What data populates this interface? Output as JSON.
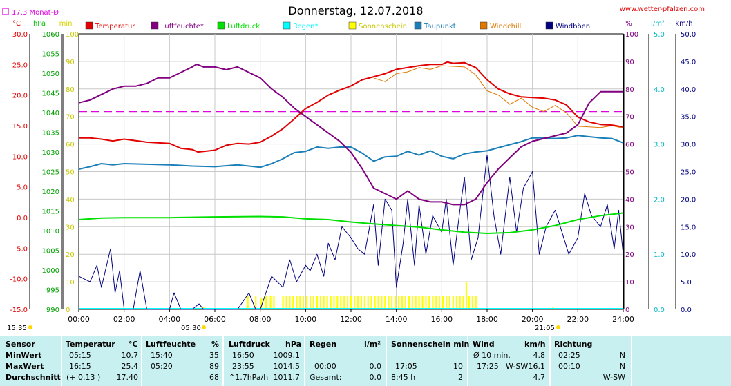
{
  "header": {
    "title": "Donnerstag, 12.07.2018",
    "website": "www.wetter-pfalzen.com",
    "month_avg": "17.3 Monat-Ø",
    "month_avg_value": 17.3,
    "start_time": "15:35",
    "sunrise": "05:30",
    "sunset": "21:05"
  },
  "axis_units": {
    "temp": "°C",
    "hpa": "hPa",
    "min": "min",
    "pct": "%",
    "rain": "l/m²",
    "wind": "km/h"
  },
  "legend": [
    {
      "label": "Temperatur",
      "color": "#e00000"
    },
    {
      "label": "Luftfeuchte*",
      "color": "#800080"
    },
    {
      "label": "Luftdruck",
      "color": "#00e000"
    },
    {
      "label": "Regen*",
      "color": "#00ffff"
    },
    {
      "label": "Sonnenschein",
      "color": "#ffff00"
    },
    {
      "label": "Taupunkt",
      "color": "#1a7fb8"
    },
    {
      "label": "Windchill",
      "color": "#e07800"
    },
    {
      "label": "Windböen",
      "color": "#000080"
    }
  ],
  "chart_data": {
    "type": "line",
    "title": "Donnerstag, 12.07.2018",
    "x_ticks": [
      "00:00",
      "02:00",
      "04:00",
      "06:00",
      "08:00",
      "10:00",
      "12:00",
      "14:00",
      "16:00",
      "18:00",
      "20:00",
      "22:00",
      "24:00"
    ],
    "x_range_hours": [
      0,
      24
    ],
    "axes": {
      "temp_c": {
        "range": [
          -15,
          30
        ],
        "ticks": [
          "30.0",
          "25.0",
          "20.0",
          "15.0",
          "10.0",
          "5.0",
          "0.0",
          "-5.0",
          "-10.0",
          "-15.0"
        ]
      },
      "pressure_hpa": {
        "range": [
          990,
          1060
        ],
        "ticks": [
          "1060",
          "1055",
          "1050",
          "1045",
          "1040",
          "1035",
          "1030",
          "1025",
          "1020",
          "1015",
          "1010",
          "1005",
          "1000",
          "995",
          "990"
        ]
      },
      "sunshine_min": {
        "range": [
          0,
          100
        ],
        "ticks": [
          "100",
          "90",
          "80",
          "70",
          "60",
          "50",
          "40",
          "30",
          "20",
          "10",
          "0"
        ]
      },
      "humidity_pct": {
        "range": [
          0,
          100
        ],
        "ticks": [
          "100",
          "90",
          "80",
          "70",
          "60",
          "50",
          "40",
          "30",
          "20",
          "10",
          "0"
        ]
      },
      "rain_lm2": {
        "range": [
          0,
          5
        ],
        "ticks": [
          "5.0",
          "4.0",
          "3.0",
          "2.0",
          "1.0",
          "0.0"
        ]
      },
      "wind_kmh": {
        "range": [
          0,
          50
        ],
        "ticks": [
          "50.0",
          "45.0",
          "40.0",
          "35.0",
          "30.0",
          "25.0",
          "20.0",
          "15.0",
          "10.0",
          "5.0",
          "0.0"
        ]
      }
    },
    "series": [
      {
        "name": "Temperatur",
        "axis": "temp_c",
        "color": "#e00000",
        "x": [
          0,
          0.5,
          1,
          1.5,
          2,
          3,
          4,
          4.5,
          5,
          5.25,
          5.5,
          6,
          6.5,
          7,
          7.5,
          8,
          8.5,
          9,
          9.5,
          10,
          10.5,
          11,
          11.5,
          12,
          12.5,
          13,
          13.5,
          14,
          14.5,
          15,
          15.5,
          16,
          16.25,
          16.5,
          17,
          17.5,
          18,
          18.5,
          19,
          19.5,
          20,
          20.5,
          21,
          21.5,
          22,
          22.5,
          23,
          23.5,
          24
        ],
        "y": [
          13,
          13,
          12.8,
          12.5,
          12.8,
          12.3,
          12.1,
          11.3,
          11.1,
          10.7,
          10.8,
          11,
          11.8,
          12.1,
          12,
          12.3,
          13.3,
          14.5,
          16.1,
          17.8,
          18.8,
          20,
          20.8,
          21.5,
          22.5,
          23,
          23.5,
          24.2,
          24.5,
          24.8,
          25,
          25,
          25.4,
          25.2,
          25.3,
          24.5,
          22.5,
          21,
          20.2,
          19.7,
          19.6,
          19.5,
          19.2,
          18.4,
          16.4,
          15.6,
          15.2,
          15.1,
          14.8
        ]
      },
      {
        "name": "Luftfeuchte*",
        "axis": "humidity_pct",
        "color": "#800080",
        "x": [
          0,
          0.5,
          1,
          1.5,
          2,
          2.5,
          3,
          3.5,
          4,
          4.5,
          5,
          5.2,
          5.5,
          6,
          6.5,
          7,
          7.5,
          8,
          8.5,
          9,
          9.5,
          10,
          10.5,
          11,
          11.5,
          12,
          12.5,
          13,
          13.5,
          14,
          14.5,
          15,
          15.5,
          16,
          16.5,
          17,
          17.5,
          18,
          18.5,
          19,
          19.5,
          20,
          20.5,
          21,
          21.5,
          22,
          22.5,
          23,
          23.5,
          24
        ],
        "y": [
          75,
          76,
          78,
          80,
          81,
          81,
          82,
          84,
          84,
          86,
          88,
          89,
          88,
          88,
          87,
          88,
          86,
          84,
          80,
          77,
          73,
          70,
          67,
          64,
          61,
          57,
          51,
          44,
          42,
          40,
          43,
          40,
          39,
          39,
          38,
          38,
          40,
          46,
          51,
          55,
          59,
          61,
          62,
          63,
          64,
          67,
          75,
          79,
          79,
          79
        ]
      },
      {
        "name": "Luftdruck",
        "axis": "pressure_hpa",
        "color": "#00e000",
        "x": [
          0,
          1,
          2,
          4,
          6,
          8,
          9,
          10,
          11,
          12,
          13,
          14,
          15,
          16,
          17,
          18,
          19,
          20,
          21,
          22,
          23,
          24
        ],
        "y": [
          1012.8,
          1013.2,
          1013.3,
          1013.3,
          1013.5,
          1013.6,
          1013.5,
          1013,
          1012.8,
          1012.2,
          1011.7,
          1011.3,
          1010.9,
          1010.2,
          1009.6,
          1009.3,
          1009.5,
          1010.2,
          1011.3,
          1012.8,
          1013.8,
          1014.5
        ]
      },
      {
        "name": "Taupunkt",
        "axis": "temp_c",
        "color": "#1a7fb8",
        "x": [
          0,
          0.5,
          1,
          1.5,
          2,
          3,
          4,
          5,
          6,
          7,
          8,
          8.5,
          9,
          9.5,
          10,
          10.5,
          11,
          11.5,
          12,
          12.5,
          13,
          13.5,
          14,
          14.5,
          15,
          15.5,
          16,
          16.5,
          17,
          17.5,
          18,
          18.5,
          19,
          19.5,
          20,
          20.5,
          21,
          21.5,
          22,
          22.5,
          23,
          23.5,
          24
        ],
        "y": [
          7.9,
          8.3,
          8.8,
          8.6,
          8.8,
          8.7,
          8.6,
          8.4,
          8.3,
          8.6,
          8.2,
          8.8,
          9.6,
          10.6,
          10.8,
          11.5,
          11.3,
          11.5,
          11.5,
          10.5,
          9.2,
          9.9,
          10,
          10.8,
          10.2,
          10.9,
          10,
          9.6,
          10.4,
          10.7,
          10.9,
          11.4,
          11.9,
          12.4,
          13,
          13,
          12.9,
          13,
          13.4,
          13.2,
          13,
          12.9,
          12.2
        ]
      },
      {
        "name": "Windchill",
        "axis": "temp_c",
        "color": "#e07800",
        "x": [
          13,
          13.5,
          14,
          14.5,
          15,
          15.5,
          16,
          16.5,
          17,
          17.5,
          18,
          18.5,
          19,
          19.5,
          20,
          20.5,
          21,
          21.5,
          22,
          22.5,
          23,
          23.5,
          24
        ],
        "y": [
          22.8,
          22.2,
          23.5,
          23.8,
          24.5,
          24.2,
          24.8,
          24.7,
          24.6,
          23.3,
          20.7,
          20,
          18.5,
          19.5,
          18,
          17.3,
          18.3,
          17.1,
          14.9,
          14.8,
          14.7,
          15,
          14.6
        ]
      },
      {
        "name": "Windböen",
        "axis": "wind_kmh",
        "color": "#000080",
        "x": [
          0,
          0.5,
          0.8,
          1,
          1.4,
          1.6,
          1.8,
          2,
          2.4,
          2.7,
          3,
          3.5,
          4,
          4.2,
          4.5,
          5,
          5.3,
          5.5,
          6,
          6.5,
          7,
          7.5,
          7.8,
          8,
          8.5,
          9,
          9.3,
          9.6,
          10,
          10.2,
          10.5,
          10.8,
          11,
          11.3,
          11.6,
          12,
          12.3,
          12.6,
          13,
          13.2,
          13.5,
          13.8,
          14,
          14.3,
          14.5,
          14.8,
          15,
          15.3,
          15.6,
          16,
          16.2,
          16.5,
          16.8,
          17,
          17.3,
          17.6,
          18,
          18.3,
          18.6,
          19,
          19.3,
          19.6,
          20,
          20.3,
          20.6,
          21,
          21.3,
          21.6,
          22,
          22.3,
          22.6,
          23,
          23.3,
          23.6,
          23.8,
          24
        ],
        "y": [
          6,
          5,
          8,
          4,
          11,
          3,
          7,
          0,
          0,
          7,
          0,
          0,
          0,
          3,
          0,
          0,
          1,
          0,
          0,
          0,
          0,
          3,
          0,
          0,
          6,
          4,
          9,
          5,
          8,
          7,
          10,
          6,
          12,
          9,
          15,
          13,
          11,
          10,
          19,
          8,
          20,
          18,
          4,
          12,
          20,
          8,
          19,
          10,
          17,
          14,
          20,
          8,
          18,
          24,
          9,
          13,
          28,
          17,
          10,
          24,
          14,
          22,
          25,
          10,
          15,
          18,
          14,
          10,
          13,
          21,
          17,
          15,
          19,
          11,
          18,
          10
        ]
      }
    ],
    "reference_line": {
      "name": "17.3 Monat-Ø",
      "axis": "temp_c",
      "value": 17.3,
      "color": "#e000e0"
    },
    "sunshine_minutes_marks": [
      {
        "x": 5.5,
        "v": 1
      },
      {
        "x": 7.45,
        "v": 5
      },
      {
        "x": 7.8,
        "v": 5
      },
      {
        "x": 8.05,
        "v": 4
      },
      {
        "x": 8.25,
        "v": 5
      },
      {
        "x": 8.45,
        "v": 5
      },
      {
        "x": 8.6,
        "v": 5
      },
      {
        "x": 9.0,
        "v": 5
      },
      {
        "x": 9.15,
        "v": 5
      },
      {
        "x": 9.3,
        "v": 5
      },
      {
        "x": 9.45,
        "v": 5
      },
      {
        "x": 9.6,
        "v": 5
      },
      {
        "x": 9.75,
        "v": 5
      },
      {
        "x": 9.9,
        "v": 5
      },
      {
        "x": 10.05,
        "v": 5
      },
      {
        "x": 10.2,
        "v": 5
      },
      {
        "x": 10.35,
        "v": 5
      },
      {
        "x": 10.5,
        "v": 5
      },
      {
        "x": 10.65,
        "v": 5
      },
      {
        "x": 10.8,
        "v": 5
      },
      {
        "x": 10.95,
        "v": 5
      },
      {
        "x": 11.1,
        "v": 5
      },
      {
        "x": 11.25,
        "v": 5
      },
      {
        "x": 11.4,
        "v": 5
      },
      {
        "x": 11.55,
        "v": 5
      },
      {
        "x": 11.7,
        "v": 5
      },
      {
        "x": 11.85,
        "v": 5
      },
      {
        "x": 12.0,
        "v": 5
      },
      {
        "x": 12.15,
        "v": 5
      },
      {
        "x": 12.3,
        "v": 5
      },
      {
        "x": 12.45,
        "v": 5
      },
      {
        "x": 12.6,
        "v": 5
      },
      {
        "x": 12.75,
        "v": 5
      },
      {
        "x": 12.9,
        "v": 5
      },
      {
        "x": 13.05,
        "v": 5
      },
      {
        "x": 13.2,
        "v": 5
      },
      {
        "x": 13.35,
        "v": 5
      },
      {
        "x": 13.5,
        "v": 5
      },
      {
        "x": 13.65,
        "v": 5
      },
      {
        "x": 13.8,
        "v": 5
      },
      {
        "x": 13.95,
        "v": 5
      },
      {
        "x": 14.1,
        "v": 5
      },
      {
        "x": 14.25,
        "v": 5
      },
      {
        "x": 14.4,
        "v": 5
      },
      {
        "x": 14.55,
        "v": 5
      },
      {
        "x": 14.7,
        "v": 5
      },
      {
        "x": 14.85,
        "v": 5
      },
      {
        "x": 15.0,
        "v": 5
      },
      {
        "x": 15.15,
        "v": 5
      },
      {
        "x": 15.3,
        "v": 5
      },
      {
        "x": 15.45,
        "v": 5
      },
      {
        "x": 15.6,
        "v": 5
      },
      {
        "x": 15.75,
        "v": 5
      },
      {
        "x": 15.9,
        "v": 5
      },
      {
        "x": 16.05,
        "v": 5
      },
      {
        "x": 16.2,
        "v": 5
      },
      {
        "x": 16.35,
        "v": 5
      },
      {
        "x": 16.5,
        "v": 5
      },
      {
        "x": 16.65,
        "v": 5
      },
      {
        "x": 16.8,
        "v": 5
      },
      {
        "x": 16.95,
        "v": 5
      },
      {
        "x": 17.08,
        "v": 10
      },
      {
        "x": 17.2,
        "v": 5
      },
      {
        "x": 17.35,
        "v": 5
      },
      {
        "x": 17.5,
        "v": 5
      },
      {
        "x": 20.9,
        "v": 1
      }
    ]
  },
  "stats": {
    "headers": {
      "sensor": "Sensor",
      "temp": "Temperatur",
      "temp_unit": "°C",
      "hum": "Luftfeuchte",
      "hum_unit": "%",
      "press": "Luftdruck",
      "press_unit": "hPa",
      "rain": "Regen",
      "rain_unit": "l/m²",
      "sun": "Sonnenschein min",
      "wind": "Wind",
      "wind_unit": "km/h",
      "dir": "Richtung"
    },
    "rows": [
      {
        "label": "MinWert",
        "temp_t": "05:15",
        "temp_v": "10.7",
        "hum_t": "15:40",
        "hum_v": "35",
        "press_t": "16:50",
        "press_v": "1009.1",
        "rain_t": "",
        "rain_v": "",
        "sun_t": "",
        "sun_v": "",
        "wind_t": "Ø 10 min.",
        "wind_d": "",
        "wind_v": "4.8",
        "dir_t": "02:25",
        "dir_v": "N"
      },
      {
        "label": "MaxWert",
        "temp_t": "16:15",
        "temp_v": "25.4",
        "hum_t": "05:20",
        "hum_v": "89",
        "press_t": "23:55",
        "press_v": "1014.5",
        "rain_t": "00:00",
        "rain_v": "0.0",
        "sun_t": "17:05",
        "sun_v": "10",
        "wind_t": "17:25",
        "wind_d": "W-SW",
        "wind_v": "16.1",
        "dir_t": "00:10",
        "dir_v": "N"
      },
      {
        "label": "Durchschnitt",
        "temp_t": "(+ 0.13 )",
        "temp_v": "17.40",
        "hum_t": "",
        "hum_v": "68",
        "press_t": "^1.7hPa/h",
        "press_v": "1011.7",
        "rain_t": "Gesamt:",
        "rain_v": "0.0",
        "sun_t": "8:45 h",
        "sun_v": "2",
        "wind_t": "",
        "wind_d": "",
        "wind_v": "4.7",
        "dir_t": "",
        "dir_v": "W-SW"
      }
    ]
  }
}
